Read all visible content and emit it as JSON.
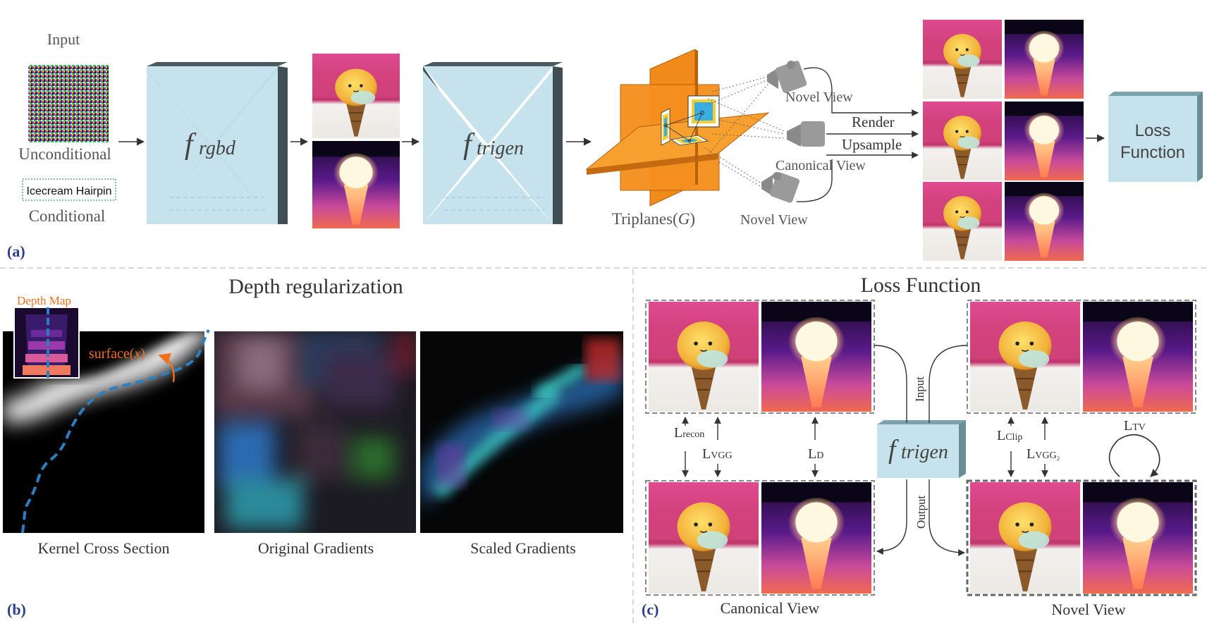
{
  "panel_a": {
    "tag": "(a)",
    "input_label": "Input",
    "unconditional_label": "Unconditional",
    "prompt_text": "Icecream Hairpin",
    "conditional_label": "Conditional",
    "f_rgbd": "f",
    "f_rgbd_sub": "rgbd",
    "f_trigen": "f",
    "f_trigen_sub": "trigen",
    "triplanes_label": "Triplanes(",
    "triplanes_var": "G",
    "triplanes_close": ")",
    "novel_view_top": "Novel View",
    "canonical_view": "Canonical View",
    "novel_view_bottom": "Novel View",
    "render_label": "Render",
    "upsample_label": "Upsample",
    "loss_function_line1": "Loss",
    "loss_function_line2": "Function"
  },
  "panel_b": {
    "tag": "(b)",
    "title": "Depth regularization",
    "depth_map_label": "Depth Map",
    "surface_label": "surface(",
    "surface_var": "x",
    "surface_close": ")",
    "caption_kernel": "Kernel Cross Section",
    "caption_original": "Original Gradients",
    "caption_scaled": "Scaled Gradients"
  },
  "panel_c": {
    "tag": "(c)",
    "title": "Loss Function",
    "f_trigen": "f",
    "f_trigen_sub": "trigen",
    "input_label": "Input",
    "output_label": "Output",
    "l_recon": "L",
    "l_recon_sub": "recon",
    "l_vgg": "L",
    "l_vgg_sub": "VGG",
    "l_d": "L",
    "l_d_sub": "D",
    "l_clip": "L",
    "l_clip_sub": "Clip",
    "l_vgg2": "L",
    "l_vgg2_sub": "VGG₂",
    "l_tv": "L",
    "l_tv_sub": "TV",
    "canonical_caption": "Canonical View",
    "novel_caption": "Novel View"
  },
  "colors": {
    "network_fill": "#c6e2ec",
    "network_edge": "#3f4f55",
    "triplane_orange": "#f5901e",
    "tag_blue": "#2a3f8f",
    "dashed_blue": "#2a7fc1",
    "surface_orange": "#f07020"
  }
}
